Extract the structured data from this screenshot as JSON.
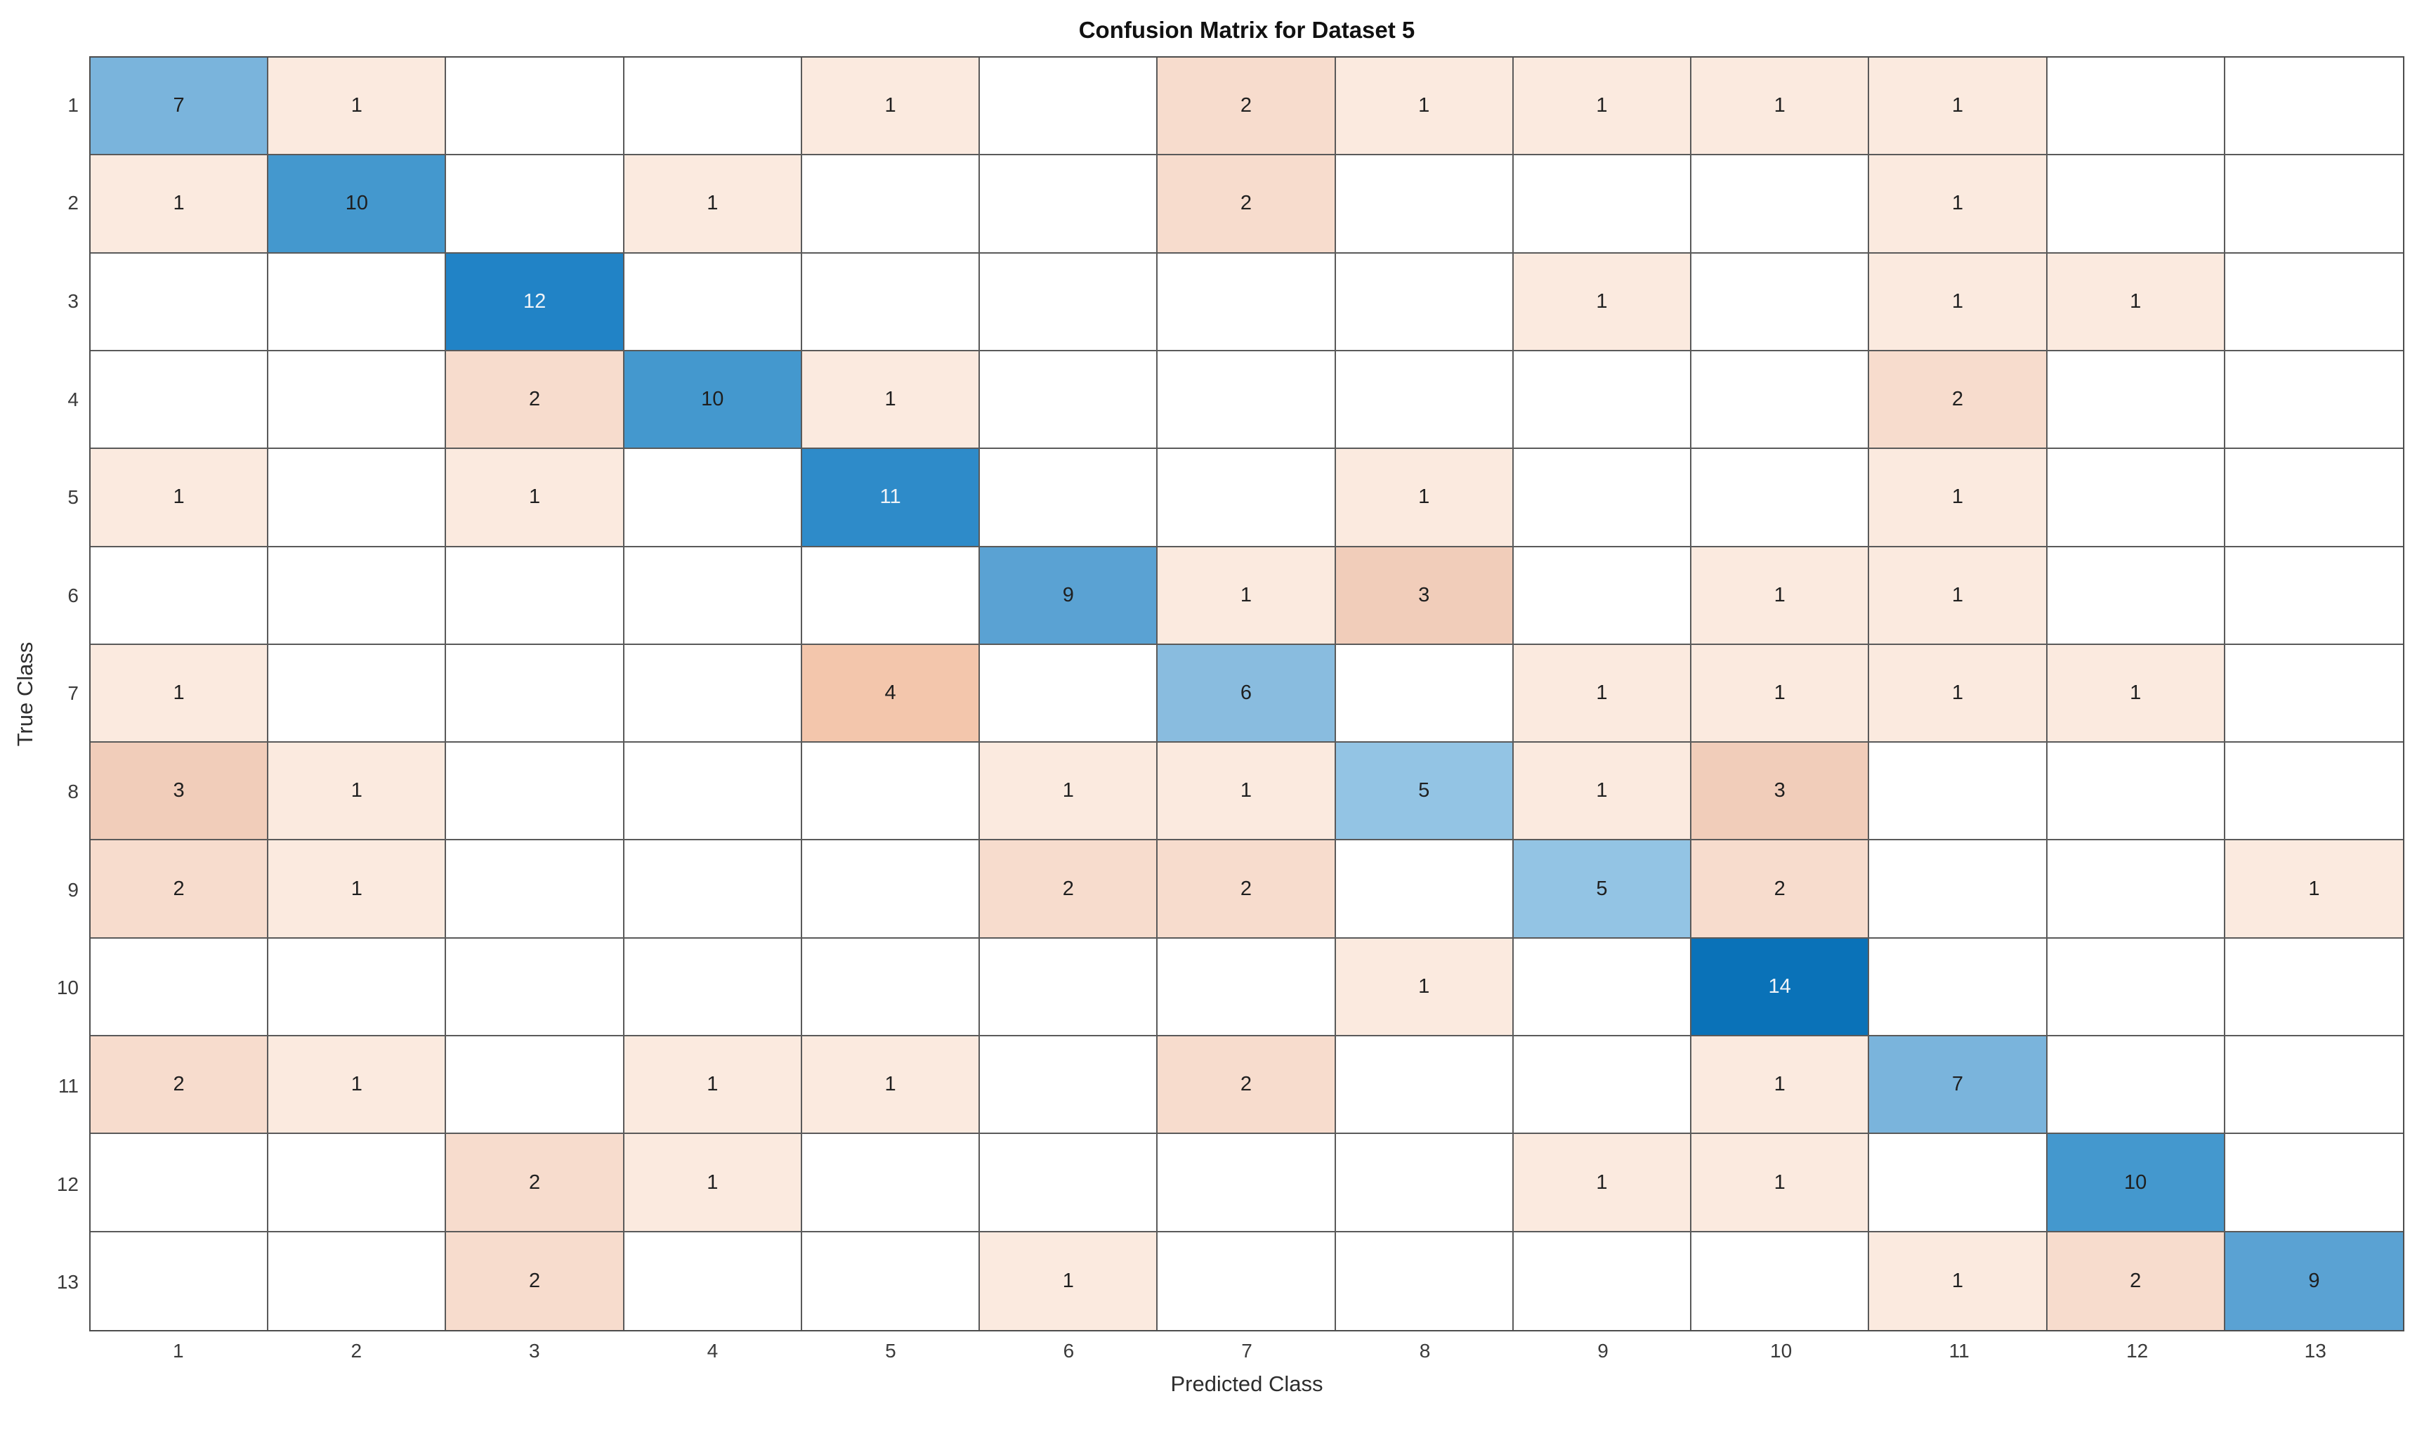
{
  "title": "Confusion Matrix for Dataset 5",
  "chart_data": {
    "type": "heatmap",
    "subtype": "confusion-matrix",
    "title": "Confusion Matrix for Dataset 5",
    "xlabel": "Predicted Class",
    "ylabel": "True Class",
    "x_tick_labels": [
      "1",
      "2",
      "3",
      "4",
      "5",
      "6",
      "7",
      "8",
      "9",
      "10",
      "11",
      "12",
      "13"
    ],
    "y_tick_labels": [
      "1",
      "2",
      "3",
      "4",
      "5",
      "6",
      "7",
      "8",
      "9",
      "10",
      "11",
      "12",
      "13"
    ],
    "matrix": [
      [
        7,
        1,
        0,
        0,
        1,
        0,
        2,
        1,
        1,
        1,
        1,
        0,
        0
      ],
      [
        1,
        10,
        0,
        1,
        0,
        0,
        2,
        0,
        0,
        0,
        1,
        0,
        0
      ],
      [
        0,
        0,
        12,
        0,
        0,
        0,
        0,
        0,
        1,
        0,
        1,
        1,
        0
      ],
      [
        0,
        0,
        2,
        10,
        1,
        0,
        0,
        0,
        0,
        0,
        2,
        0,
        0
      ],
      [
        1,
        0,
        1,
        0,
        11,
        0,
        0,
        1,
        0,
        0,
        1,
        0,
        0
      ],
      [
        0,
        0,
        0,
        0,
        0,
        9,
        1,
        3,
        0,
        1,
        1,
        0,
        0
      ],
      [
        1,
        0,
        0,
        0,
        4,
        0,
        6,
        0,
        1,
        1,
        1,
        1,
        0
      ],
      [
        3,
        1,
        0,
        0,
        0,
        1,
        1,
        5,
        1,
        3,
        0,
        0,
        0
      ],
      [
        2,
        1,
        0,
        0,
        0,
        2,
        2,
        0,
        5,
        2,
        0,
        0,
        1
      ],
      [
        0,
        0,
        0,
        0,
        0,
        0,
        0,
        1,
        0,
        14,
        0,
        0,
        0
      ],
      [
        2,
        1,
        0,
        1,
        1,
        0,
        2,
        0,
        0,
        1,
        7,
        0,
        0
      ],
      [
        0,
        0,
        2,
        1,
        0,
        0,
        0,
        0,
        1,
        1,
        0,
        10,
        0
      ],
      [
        0,
        0,
        2,
        0,
        0,
        1,
        0,
        0,
        0,
        0,
        1,
        2,
        9
      ]
    ],
    "grid": "on",
    "legend": "off",
    "colors": {
      "diagonal_base": "#0072BD",
      "offdiagonal_base": "#D95319",
      "empty_cell": "#FFFFFF",
      "grid_line": "#5A5A5A",
      "dark_cell_text": "#1F1F1F",
      "light_cell_text": "#F0F4F8",
      "diagonal_by_value": {
        "5": "#93C4E4",
        "6": "#89BCDF",
        "7": "#7AB4DC",
        "9": "#5AA2D3",
        "10": "#4498CE",
        "11": "#2E8BC9",
        "12": "#2183C6",
        "14": "#0A72B8"
      },
      "offdiagonal_by_value": {
        "1": "#FBEADF",
        "2": "#F7DCCD",
        "3": "#F1CDBA",
        "4": "#F3C6AC"
      },
      "white_text_threshold": 11
    }
  }
}
